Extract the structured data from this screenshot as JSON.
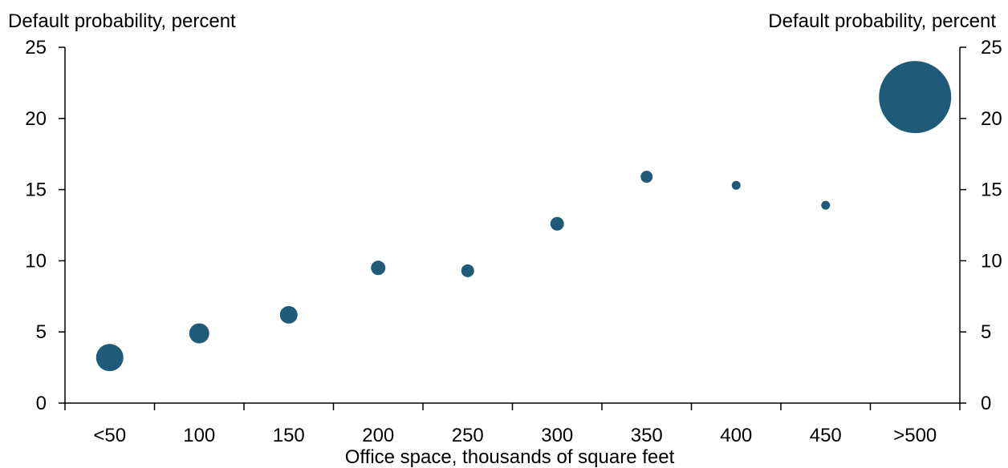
{
  "chart_data": {
    "type": "scatter",
    "style": "bubble",
    "ylabel_left": "Default probability, percent",
    "ylabel_right": "Default probability, percent",
    "xlabel": "Office space, thousands of square feet",
    "ylim": [
      0,
      25
    ],
    "yticks": [
      0,
      5,
      10,
      15,
      20,
      25
    ],
    "categories": [
      "<50",
      "100",
      "150",
      "200",
      "250",
      "300",
      "350",
      "400",
      "450",
      ">500"
    ],
    "values": [
      3.2,
      4.9,
      6.2,
      9.5,
      9.3,
      12.6,
      15.9,
      15.3,
      13.9,
      21.5
    ],
    "bubble_size": [
      17,
      12.5,
      11,
      9,
      8,
      8.5,
      7.5,
      5.5,
      5.5,
      45
    ],
    "color": "#1f5a78",
    "grid": false,
    "legend": "none"
  }
}
